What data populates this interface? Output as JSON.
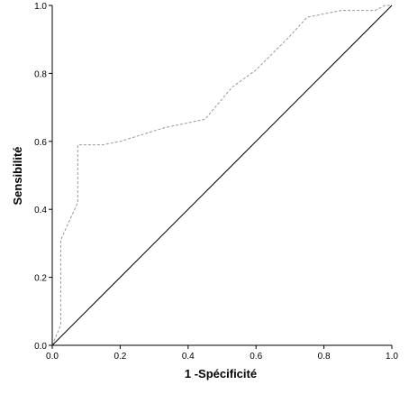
{
  "chart_data": {
    "type": "line",
    "title": "",
    "xlabel": "1 -Spécificité",
    "ylabel": "Sensibilité",
    "xlim": [
      0.0,
      1.0
    ],
    "ylim": [
      0.0,
      1.0
    ],
    "xticks": [
      "0.0",
      "0.2",
      "0.4",
      "0.6",
      "0.8",
      "1.0"
    ],
    "yticks": [
      "0.0",
      "0.2",
      "0.4",
      "0.6",
      "0.8",
      "1.0"
    ],
    "grid": false,
    "legend": "none",
    "series": [
      {
        "style": "dashed",
        "color": "#999999",
        "x": [
          0.0,
          0.0,
          0.025,
          0.025,
          0.025,
          0.075,
          0.075,
          0.075,
          0.15,
          0.2,
          0.33,
          0.45,
          0.53,
          0.6,
          0.7,
          0.75,
          0.85,
          0.95,
          0.98,
          1.0
        ],
        "y": [
          0.0,
          0.0,
          0.06,
          0.31,
          0.31,
          0.42,
          0.59,
          0.59,
          0.59,
          0.6,
          0.64,
          0.665,
          0.76,
          0.81,
          0.91,
          0.965,
          0.985,
          0.985,
          1.0,
          1.0
        ]
      },
      {
        "style": "solid",
        "color": "#000000",
        "x": [
          0.0,
          1.0
        ],
        "y": [
          0.0,
          1.0
        ]
      }
    ]
  }
}
